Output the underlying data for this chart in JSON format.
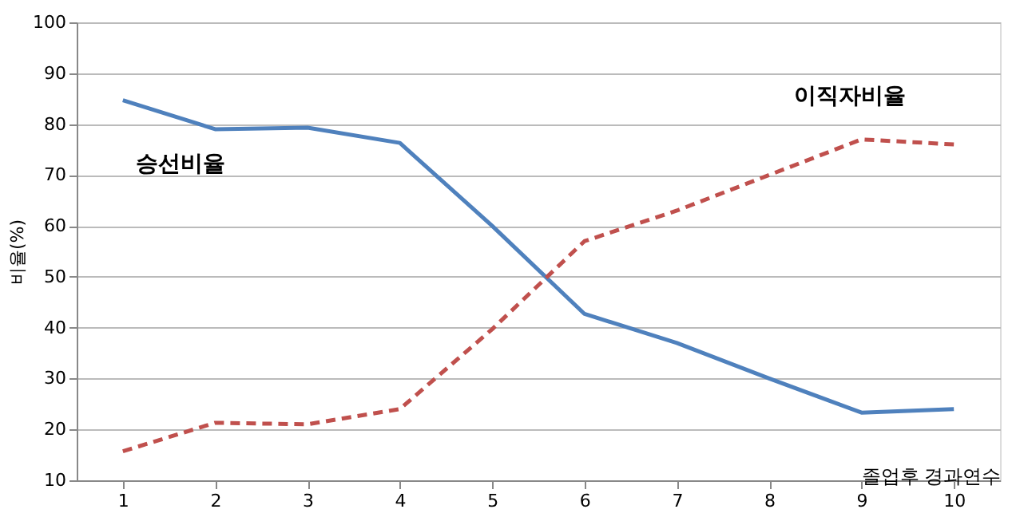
{
  "chart_data": {
    "type": "line",
    "ylabel": "비율(%)",
    "xlabel": "졸업후  경과연수",
    "x": [
      1,
      2,
      3,
      4,
      5,
      6,
      7,
      8,
      9,
      10
    ],
    "series": [
      {
        "color": "#4f81bd",
        "line_style": "solid",
        "values": [
          84.7,
          79,
          79.3,
          76.3,
          60,
          42.7,
          37,
          30,
          23.3,
          24
        ]
      },
      {
        "color": "#c0504d",
        "line_style": "dashed",
        "values": [
          15.7,
          21.3,
          21,
          24,
          39.7,
          57,
          63,
          70,
          77,
          76
        ]
      }
    ],
    "annotations": [
      "승선비율",
      "이직자비율"
    ],
    "xlim": [
      0.5,
      10.5
    ],
    "xticks": [
      1,
      2,
      3,
      4,
      5,
      6,
      7,
      8,
      9,
      10
    ],
    "ylim": [
      10,
      100
    ],
    "yticks": [
      10,
      20,
      30,
      40,
      50,
      60,
      70,
      80,
      90,
      100
    ],
    "grid": "y",
    "marker": "none"
  }
}
